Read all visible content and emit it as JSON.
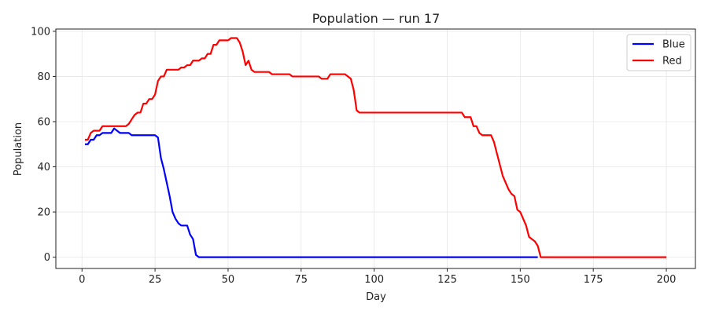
{
  "chart_data": {
    "type": "line",
    "title": "Population — run 17",
    "xlabel": "Day",
    "ylabel": "Population",
    "xlim": [
      -8.95,
      209.95
    ],
    "ylim": [
      -5,
      101
    ],
    "xticks": [
      0,
      25,
      50,
      75,
      100,
      125,
      150,
      175,
      200
    ],
    "yticks": [
      0,
      20,
      40,
      60,
      80,
      100
    ],
    "grid": true,
    "legend": "top-right",
    "series": [
      {
        "name": "Blue",
        "color": "#0000ff",
        "points": [
          [
            1,
            50
          ],
          [
            2,
            50
          ],
          [
            3,
            52
          ],
          [
            4,
            52
          ],
          [
            5,
            54
          ],
          [
            6,
            54
          ],
          [
            7,
            55
          ],
          [
            8,
            55
          ],
          [
            9,
            55
          ],
          [
            10,
            55
          ],
          [
            11,
            57
          ],
          [
            12,
            56
          ],
          [
            13,
            55
          ],
          [
            14,
            55
          ],
          [
            15,
            55
          ],
          [
            16,
            55
          ],
          [
            17,
            54
          ],
          [
            18,
            54
          ],
          [
            19,
            54
          ],
          [
            20,
            54
          ],
          [
            21,
            54
          ],
          [
            22,
            54
          ],
          [
            23,
            54
          ],
          [
            24,
            54
          ],
          [
            25,
            54
          ],
          [
            26,
            53
          ],
          [
            27,
            44
          ],
          [
            28,
            39
          ],
          [
            29,
            33
          ],
          [
            30,
            27
          ],
          [
            31,
            20
          ],
          [
            32,
            17
          ],
          [
            33,
            15
          ],
          [
            34,
            14
          ],
          [
            35,
            14
          ],
          [
            36,
            14
          ],
          [
            37,
            10
          ],
          [
            38,
            8
          ],
          [
            39,
            1
          ],
          [
            40,
            0
          ],
          [
            50,
            0
          ],
          [
            100,
            0
          ],
          [
            150,
            0
          ],
          [
            156,
            0
          ]
        ]
      },
      {
        "name": "Red",
        "color": "#ff0000",
        "points": [
          [
            1,
            52
          ],
          [
            2,
            52
          ],
          [
            3,
            55
          ],
          [
            4,
            56
          ],
          [
            5,
            56
          ],
          [
            6,
            56
          ],
          [
            7,
            58
          ],
          [
            8,
            58
          ],
          [
            9,
            58
          ],
          [
            10,
            58
          ],
          [
            11,
            58
          ],
          [
            12,
            58
          ],
          [
            13,
            58
          ],
          [
            14,
            58
          ],
          [
            15,
            58
          ],
          [
            16,
            59
          ],
          [
            17,
            61
          ],
          [
            18,
            63
          ],
          [
            19,
            64
          ],
          [
            20,
            64
          ],
          [
            21,
            68
          ],
          [
            22,
            68
          ],
          [
            23,
            70
          ],
          [
            24,
            70
          ],
          [
            25,
            72
          ],
          [
            26,
            78
          ],
          [
            27,
            80
          ],
          [
            28,
            80
          ],
          [
            29,
            83
          ],
          [
            30,
            83
          ],
          [
            31,
            83
          ],
          [
            32,
            83
          ],
          [
            33,
            83
          ],
          [
            34,
            84
          ],
          [
            35,
            84
          ],
          [
            36,
            85
          ],
          [
            37,
            85
          ],
          [
            38,
            87
          ],
          [
            39,
            87
          ],
          [
            40,
            87
          ],
          [
            41,
            88
          ],
          [
            42,
            88
          ],
          [
            43,
            90
          ],
          [
            44,
            90
          ],
          [
            45,
            94
          ],
          [
            46,
            94
          ],
          [
            47,
            96
          ],
          [
            48,
            96
          ],
          [
            49,
            96
          ],
          [
            50,
            96
          ],
          [
            51,
            97
          ],
          [
            52,
            97
          ],
          [
            53,
            97
          ],
          [
            54,
            95
          ],
          [
            55,
            91
          ],
          [
            56,
            85
          ],
          [
            57,
            87
          ],
          [
            58,
            83
          ],
          [
            59,
            82
          ],
          [
            60,
            82
          ],
          [
            61,
            82
          ],
          [
            62,
            82
          ],
          [
            63,
            82
          ],
          [
            64,
            82
          ],
          [
            65,
            81
          ],
          [
            66,
            81
          ],
          [
            67,
            81
          ],
          [
            68,
            81
          ],
          [
            69,
            81
          ],
          [
            70,
            81
          ],
          [
            71,
            81
          ],
          [
            72,
            80
          ],
          [
            73,
            80
          ],
          [
            74,
            80
          ],
          [
            75,
            80
          ],
          [
            76,
            80
          ],
          [
            77,
            80
          ],
          [
            78,
            80
          ],
          [
            79,
            80
          ],
          [
            80,
            80
          ],
          [
            81,
            80
          ],
          [
            82,
            79
          ],
          [
            83,
            79
          ],
          [
            84,
            79
          ],
          [
            85,
            81
          ],
          [
            86,
            81
          ],
          [
            87,
            81
          ],
          [
            88,
            81
          ],
          [
            89,
            81
          ],
          [
            90,
            81
          ],
          [
            91,
            80
          ],
          [
            92,
            79
          ],
          [
            93,
            74
          ],
          [
            94,
            65
          ],
          [
            95,
            64
          ],
          [
            96,
            64
          ],
          [
            100,
            64
          ],
          [
            110,
            64
          ],
          [
            120,
            64
          ],
          [
            130,
            64
          ],
          [
            131,
            62
          ],
          [
            132,
            62
          ],
          [
            133,
            62
          ],
          [
            134,
            58
          ],
          [
            135,
            58
          ],
          [
            136,
            55
          ],
          [
            137,
            54
          ],
          [
            138,
            54
          ],
          [
            139,
            54
          ],
          [
            140,
            54
          ],
          [
            141,
            51
          ],
          [
            142,
            46
          ],
          [
            143,
            41
          ],
          [
            144,
            36
          ],
          [
            145,
            33
          ],
          [
            146,
            30
          ],
          [
            147,
            28
          ],
          [
            148,
            27
          ],
          [
            149,
            21
          ],
          [
            150,
            20
          ],
          [
            151,
            17
          ],
          [
            152,
            14
          ],
          [
            153,
            9
          ],
          [
            154,
            8
          ],
          [
            155,
            7
          ],
          [
            156,
            5
          ],
          [
            157,
            0
          ],
          [
            175,
            0
          ],
          [
            200,
            0
          ]
        ]
      }
    ]
  }
}
